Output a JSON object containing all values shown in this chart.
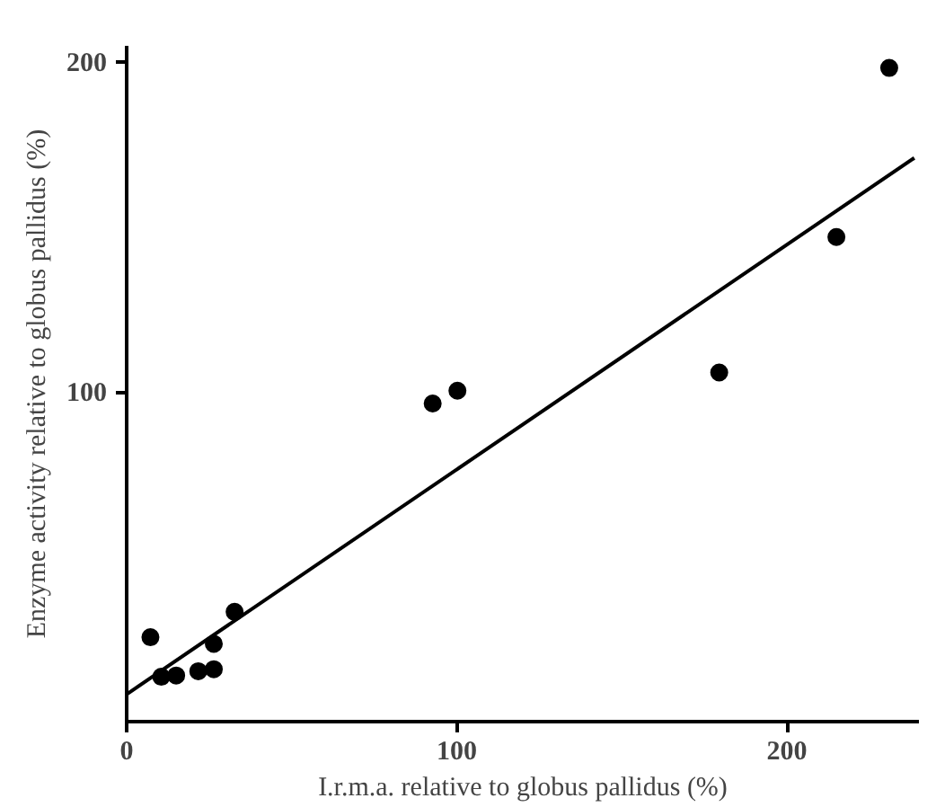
{
  "chart_data": {
    "type": "scatter",
    "xlabel": "I.r.m.a. relative to globus pallidus (%)",
    "ylabel": "Enzyme activity relative to globus pallidus (%)",
    "xlim": [
      0,
      240
    ],
    "ylim": [
      0,
      205
    ],
    "xticks": [
      0,
      100,
      200
    ],
    "yticks": [
      100,
      200
    ],
    "grid": false,
    "marker": "circle",
    "series": [
      {
        "color": "#000000",
        "x": [
          7.2,
          10.5,
          15,
          21.7,
          26.4,
          26.4,
          32.7,
          92.7,
          100.2,
          179.5,
          215,
          231
        ],
        "values": [
          25.6,
          13.6,
          14,
          15.3,
          15.9,
          23.6,
          33.3,
          96.5,
          100.4,
          105.9,
          147,
          198.3
        ]
      },
      {
        "type": "line",
        "color": "#000000",
        "line_style": "solid",
        "marker": "none",
        "x": [
          0,
          238.6
        ],
        "values": [
          8.3,
          171
        ]
      }
    ]
  }
}
